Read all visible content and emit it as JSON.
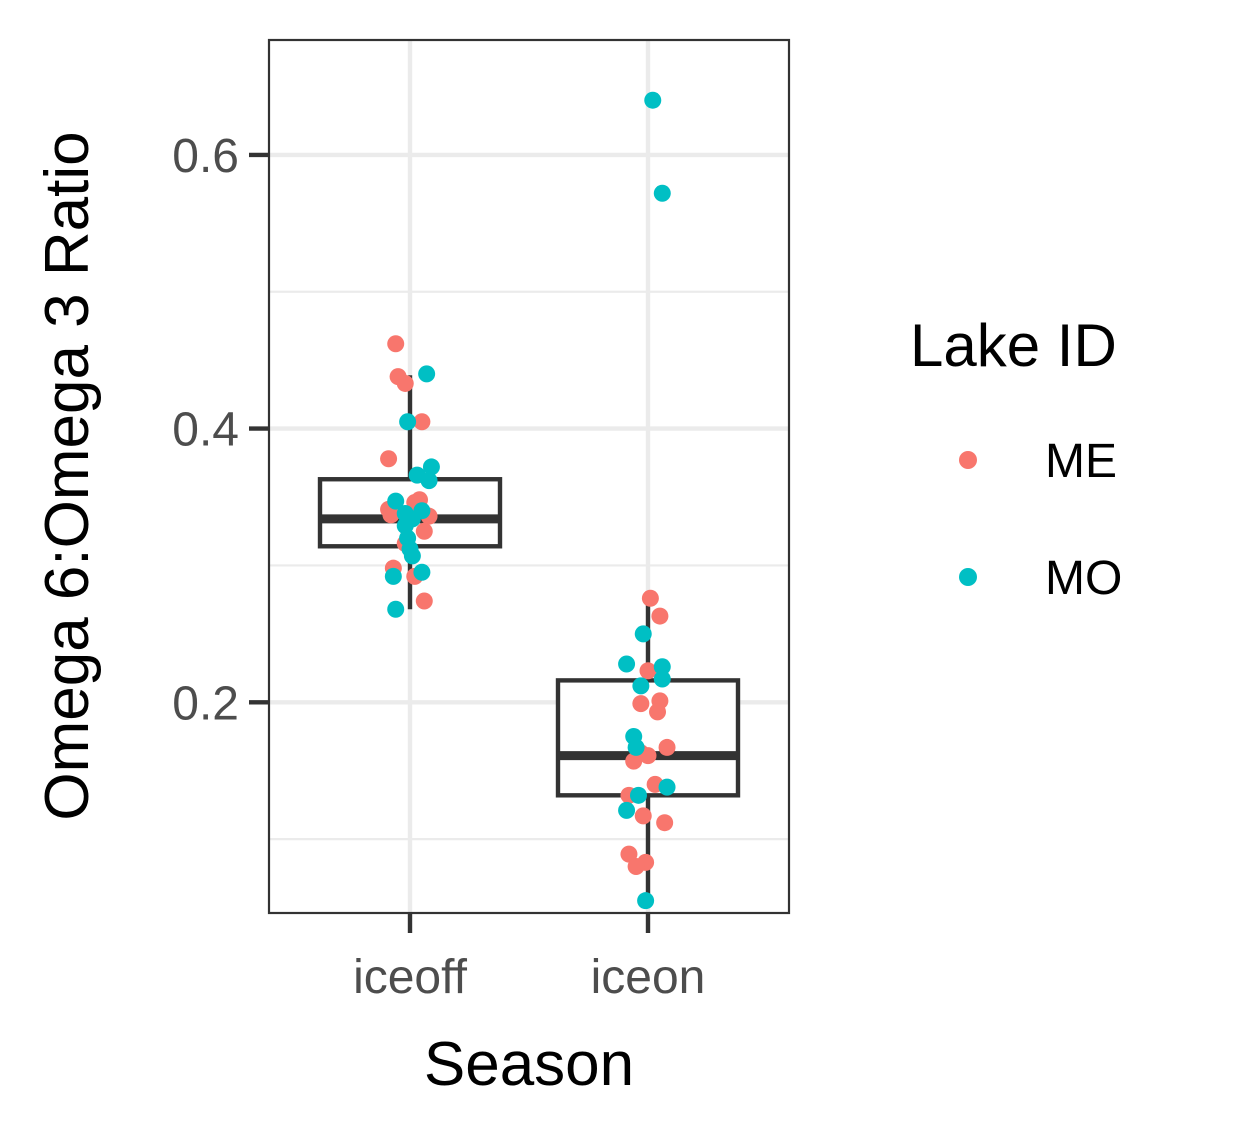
{
  "chart_data": {
    "type": "boxplot",
    "title": "",
    "xlabel": "Season",
    "ylabel": "Omega 6:Omega 3 Ratio",
    "categories": [
      "iceoff",
      "iceon"
    ],
    "ylim": [
      0.046,
      0.684
    ],
    "yticks": [
      0.2,
      0.4,
      0.6
    ],
    "ytick_labels": [
      "0.2",
      "0.4",
      "0.6"
    ],
    "grid": true,
    "legend": {
      "title": "Lake ID",
      "position": "right",
      "entries": [
        {
          "name": "ME",
          "color": "#F8766D"
        },
        {
          "name": "MO",
          "color": "#00BFC4"
        }
      ]
    },
    "boxes": [
      {
        "category": "iceoff",
        "whisker_low": 0.268,
        "q1": 0.314,
        "median": 0.334,
        "q3": 0.363,
        "whisker_high": 0.439
      },
      {
        "category": "iceon",
        "whisker_low": 0.055,
        "q1": 0.132,
        "median": 0.161,
        "q3": 0.216,
        "whisker_high": 0.275
      }
    ],
    "series": [
      {
        "name": "ME",
        "color": "#F8766D",
        "points": [
          {
            "x": "iceoff",
            "jitter": -0.06,
            "y": 0.462
          },
          {
            "x": "iceoff",
            "jitter": -0.05,
            "y": 0.438
          },
          {
            "x": "iceoff",
            "jitter": -0.02,
            "y": 0.433
          },
          {
            "x": "iceoff",
            "jitter": 0.05,
            "y": 0.405
          },
          {
            "x": "iceoff",
            "jitter": -0.09,
            "y": 0.378
          },
          {
            "x": "iceoff",
            "jitter": 0.04,
            "y": 0.348
          },
          {
            "x": "iceoff",
            "jitter": 0.02,
            "y": 0.346
          },
          {
            "x": "iceoff",
            "jitter": -0.09,
            "y": 0.341
          },
          {
            "x": "iceoff",
            "jitter": -0.08,
            "y": 0.337
          },
          {
            "x": "iceoff",
            "jitter": 0.08,
            "y": 0.336
          },
          {
            "x": "iceoff",
            "jitter": 0.06,
            "y": 0.325
          },
          {
            "x": "iceoff",
            "jitter": -0.02,
            "y": 0.316
          },
          {
            "x": "iceoff",
            "jitter": -0.07,
            "y": 0.298
          },
          {
            "x": "iceoff",
            "jitter": 0.02,
            "y": 0.292
          },
          {
            "x": "iceoff",
            "jitter": 0.06,
            "y": 0.274
          },
          {
            "x": "iceon",
            "jitter": 0.01,
            "y": 0.276
          },
          {
            "x": "iceon",
            "jitter": 0.05,
            "y": 0.263
          },
          {
            "x": "iceon",
            "jitter": 0.0,
            "y": 0.223
          },
          {
            "x": "iceon",
            "jitter": 0.05,
            "y": 0.201
          },
          {
            "x": "iceon",
            "jitter": -0.03,
            "y": 0.199
          },
          {
            "x": "iceon",
            "jitter": 0.04,
            "y": 0.193
          },
          {
            "x": "iceon",
            "jitter": 0.08,
            "y": 0.167
          },
          {
            "x": "iceon",
            "jitter": -0.03,
            "y": 0.163
          },
          {
            "x": "iceon",
            "jitter": 0.0,
            "y": 0.161
          },
          {
            "x": "iceon",
            "jitter": -0.06,
            "y": 0.157
          },
          {
            "x": "iceon",
            "jitter": 0.03,
            "y": 0.14
          },
          {
            "x": "iceon",
            "jitter": -0.08,
            "y": 0.132
          },
          {
            "x": "iceon",
            "jitter": -0.02,
            "y": 0.117
          },
          {
            "x": "iceon",
            "jitter": 0.07,
            "y": 0.112
          },
          {
            "x": "iceon",
            "jitter": -0.08,
            "y": 0.089
          },
          {
            "x": "iceon",
            "jitter": -0.01,
            "y": 0.083
          },
          {
            "x": "iceon",
            "jitter": -0.05,
            "y": 0.08
          }
        ]
      },
      {
        "name": "MO",
        "color": "#00BFC4",
        "points": [
          {
            "x": "iceoff",
            "jitter": 0.07,
            "y": 0.44
          },
          {
            "x": "iceoff",
            "jitter": -0.01,
            "y": 0.405
          },
          {
            "x": "iceoff",
            "jitter": 0.09,
            "y": 0.372
          },
          {
            "x": "iceoff",
            "jitter": 0.03,
            "y": 0.366
          },
          {
            "x": "iceoff",
            "jitter": 0.08,
            "y": 0.362
          },
          {
            "x": "iceoff",
            "jitter": -0.06,
            "y": 0.347
          },
          {
            "x": "iceoff",
            "jitter": 0.05,
            "y": 0.34
          },
          {
            "x": "iceoff",
            "jitter": -0.02,
            "y": 0.338
          },
          {
            "x": "iceoff",
            "jitter": 0.01,
            "y": 0.334
          },
          {
            "x": "iceoff",
            "jitter": -0.02,
            "y": 0.329
          },
          {
            "x": "iceoff",
            "jitter": -0.01,
            "y": 0.32
          },
          {
            "x": "iceoff",
            "jitter": 0.0,
            "y": 0.312
          },
          {
            "x": "iceoff",
            "jitter": 0.01,
            "y": 0.307
          },
          {
            "x": "iceoff",
            "jitter": 0.05,
            "y": 0.295
          },
          {
            "x": "iceoff",
            "jitter": -0.07,
            "y": 0.292
          },
          {
            "x": "iceoff",
            "jitter": -0.06,
            "y": 0.268
          },
          {
            "x": "iceon",
            "jitter": 0.02,
            "y": 0.64
          },
          {
            "x": "iceon",
            "jitter": 0.06,
            "y": 0.572
          },
          {
            "x": "iceon",
            "jitter": -0.02,
            "y": 0.25
          },
          {
            "x": "iceon",
            "jitter": -0.09,
            "y": 0.228
          },
          {
            "x": "iceon",
            "jitter": 0.06,
            "y": 0.226
          },
          {
            "x": "iceon",
            "jitter": 0.06,
            "y": 0.217
          },
          {
            "x": "iceon",
            "jitter": -0.03,
            "y": 0.212
          },
          {
            "x": "iceon",
            "jitter": -0.06,
            "y": 0.175
          },
          {
            "x": "iceon",
            "jitter": -0.05,
            "y": 0.167
          },
          {
            "x": "iceon",
            "jitter": 0.08,
            "y": 0.138
          },
          {
            "x": "iceon",
            "jitter": -0.04,
            "y": 0.132
          },
          {
            "x": "iceon",
            "jitter": -0.09,
            "y": 0.121
          },
          {
            "x": "iceon",
            "jitter": -0.01,
            "y": 0.055
          }
        ]
      }
    ]
  }
}
